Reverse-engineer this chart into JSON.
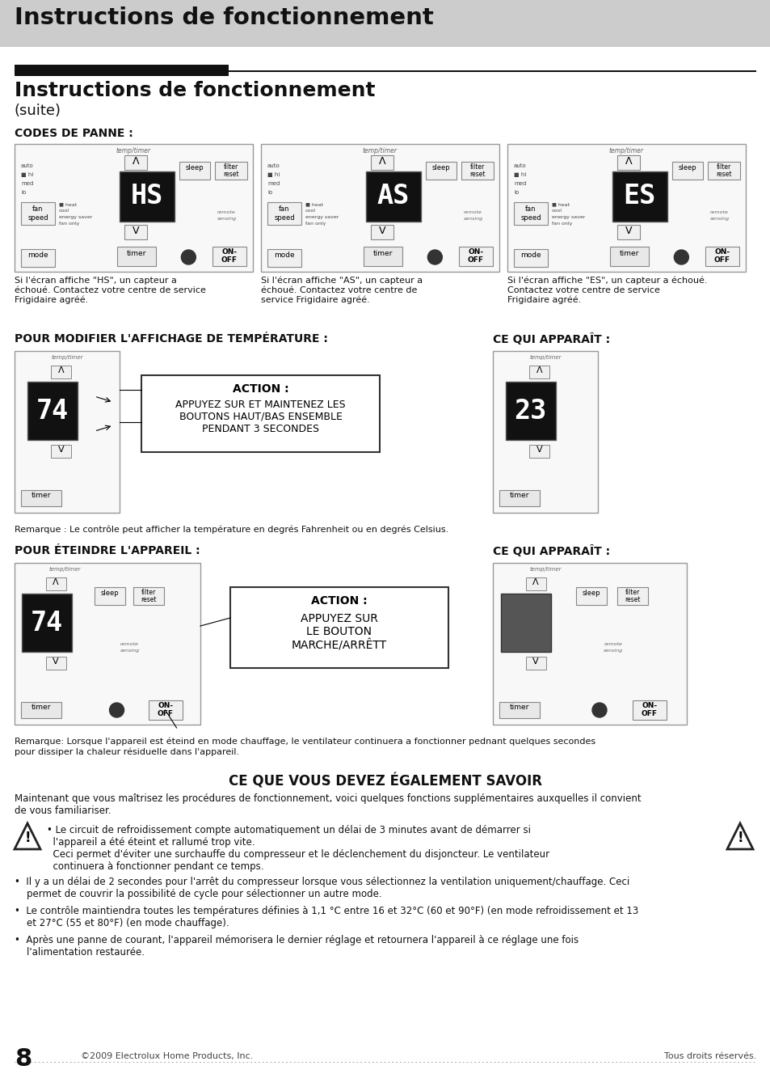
{
  "bg_color": "#ffffff",
  "header_bg": "#d0d0d0",
  "header_text": "Instructions de fonctionnement",
  "section_title": "Instructions de fonctionnement",
  "section_subtitle": "(suite)",
  "codes_title": "CODES DE PANNE :",
  "fault_codes": [
    "HS",
    "AS",
    "ES"
  ],
  "fault_descriptions": [
    "Si l'écran affiche \"HS\", un capteur a\néchoué. Contactez votre centre de service\nFrigidaire agréé.",
    "Si l'écran affiche \"AS\", un capteur a\néchoué. Contactez votre centre de\nservice Frigidaire agréé.",
    "Si l'écran affiche \"ES\", un capteur a échoué.\nContactez votre centre de service\nFrigidaire agréé."
  ],
  "temp_title": "POUR MODIFIER L'AFFICHAGE DE TEMPÉRATURE :",
  "temp_ce_title": "CE QUI APPARAÎT :",
  "temp_remark": "Remarque : Le contrôle peut afficher la température en degrés Fahrenheit ou en degrés Celsius.",
  "off_title": "POUR ÉTEINDRE L'APPAREIL :",
  "off_ce_title": "CE QUI APPARAÎT :",
  "off_remark": "Remarque: Lorsque l'appareil est éteind en mode chauffage, le ventilateur continuera a fonctionner pednant quelques secondes\npour dissiper la chaleur résiduelle dans l'appareil.",
  "ce_vous_title": "CE QUE VOUS DEVEZ ÉGALEMENT SAVOIR",
  "intro_text": "Maintenant que vous maîtrisez les procédures de fonctionnement, voici quelques fonctions supplémentaires auxquelles il convient\nde vous familiariser.",
  "bullet1_sub": "• Le circuit de refroidissement compte automatiquement un délai de 3 minutes avant de démarrer si\n  l'appareil a été éteint et rallumé trop vite.\n  Ceci permet d'éviter une surchauffe du compresseur et le déclenchement du disjoncteur. Le ventilateur\n  continuera à fonctionner pendant ce temps.",
  "bullet2": "•  Il y a un délai de 2 secondes pour l'arrêt du compresseur lorsque vous sélectionnez la ventilation uniquement/chauffage. Ceci\n    permet de couvrir la possibilité de cycle pour sélectionner un autre mode.",
  "bullet3": "•  Le contrôle maintiendra toutes les températures définies à 1,1 °C entre 16 et 32°C (60 et 90°F) (en mode refroidissement et 13\n    et 27°C (55 et 80°F) (en mode chauffage).",
  "bullet4": "•  Après une panne de courant, l'appareil mémorisera le dernier réglage et retournera l'appareil à ce réglage une fois\n    l'alimentation restaurée.",
  "footer_left": "©2009 Electrolux Home Products, Inc.",
  "footer_right": "Tous droits réservés.",
  "page_number": "8"
}
